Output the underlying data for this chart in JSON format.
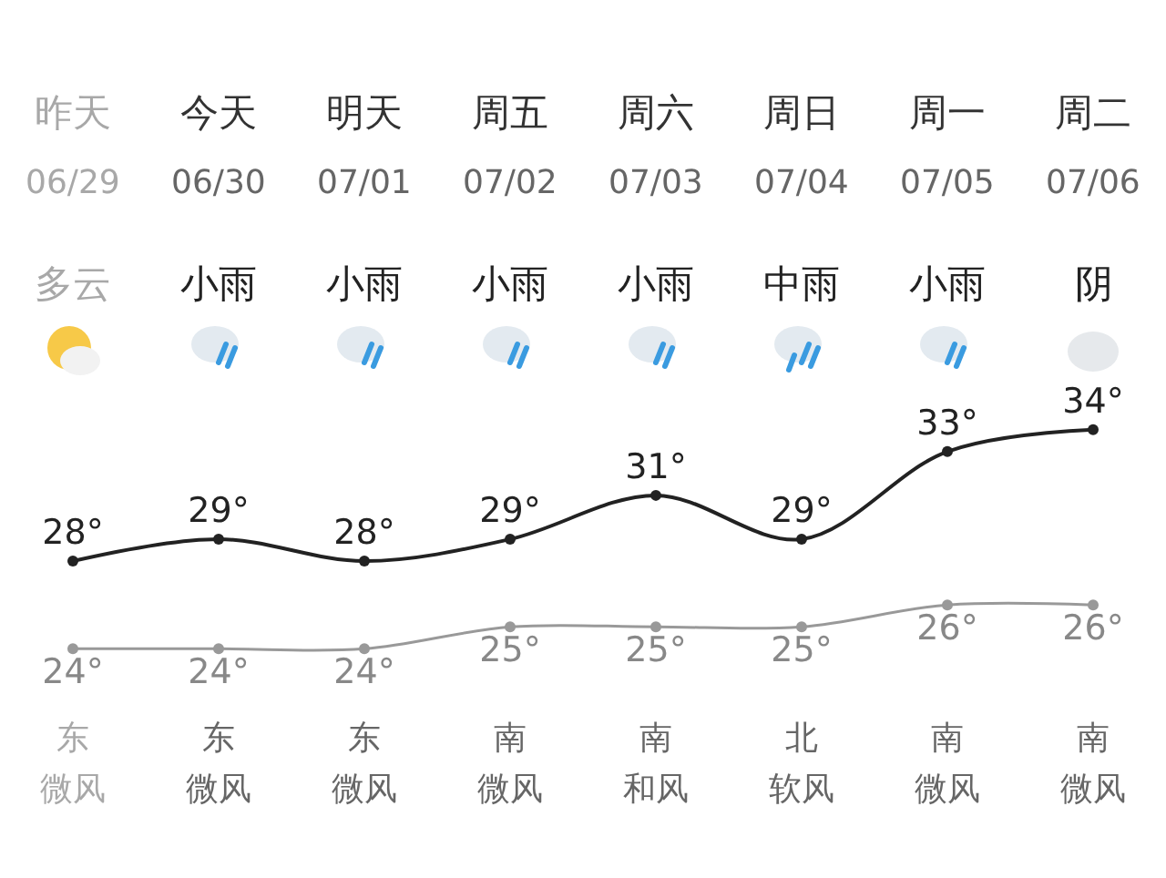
{
  "chart_data": {
    "type": "line",
    "categories": [
      "昨天",
      "今天",
      "明天",
      "周五",
      "周六",
      "周日",
      "周一",
      "周二"
    ],
    "series": [
      {
        "color": "#222222",
        "values": [
          28,
          29,
          28,
          29,
          31,
          29,
          33,
          34
        ],
        "value_labels": [
          "28°",
          "29°",
          "28°",
          "29°",
          "31°",
          "29°",
          "33°",
          "34°"
        ]
      },
      {
        "color": "#999999",
        "values": [
          24,
          24,
          24,
          25,
          25,
          25,
          26,
          26
        ],
        "value_labels": [
          "24°",
          "24°",
          "24°",
          "25°",
          "25°",
          "25°",
          "26°",
          "26°"
        ]
      }
    ],
    "marker": "circle",
    "line_style": "solid",
    "annotations": [
      "06/29",
      "06/30",
      "07/01",
      "07/02",
      "07/03",
      "07/04",
      "07/05",
      "07/06",
      "多云",
      "小雨",
      "小雨",
      "小雨",
      "小雨",
      "中雨",
      "小雨",
      "阴",
      "东",
      "东",
      "东",
      "南",
      "南",
      "北",
      "南",
      "南",
      "微风",
      "微风",
      "微风",
      "微风",
      "和风",
      "软风",
      "微风",
      "微风"
    ]
  }
}
